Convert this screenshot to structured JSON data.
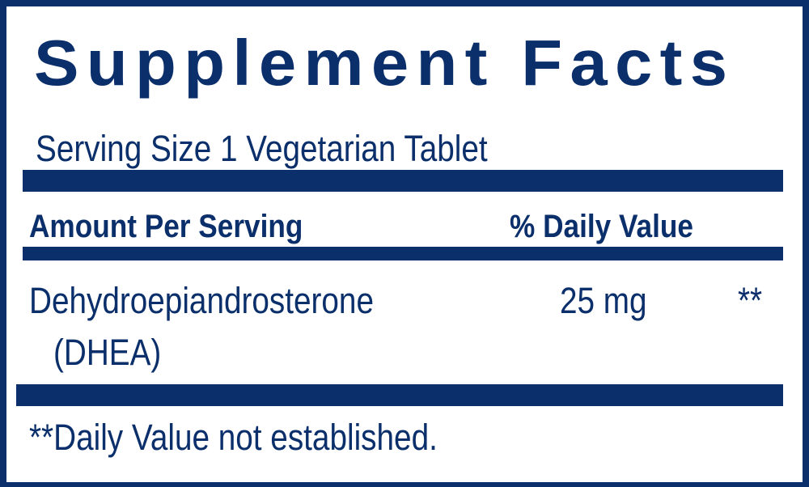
{
  "label": {
    "title": "Supplement Facts",
    "serving_size": "Serving Size 1 Vegetarian Tablet",
    "header": {
      "amount": "Amount Per Serving",
      "daily_value": "% Daily Value"
    },
    "ingredients": [
      {
        "name_line1": "Dehydroepiandrosterone",
        "name_line2": "(DHEA)",
        "amount": "25 mg",
        "daily_value": "**"
      }
    ],
    "footnote": "**Daily Value not established.",
    "colors": {
      "ink": "#0b2f6b",
      "background": "#ffffff"
    }
  }
}
